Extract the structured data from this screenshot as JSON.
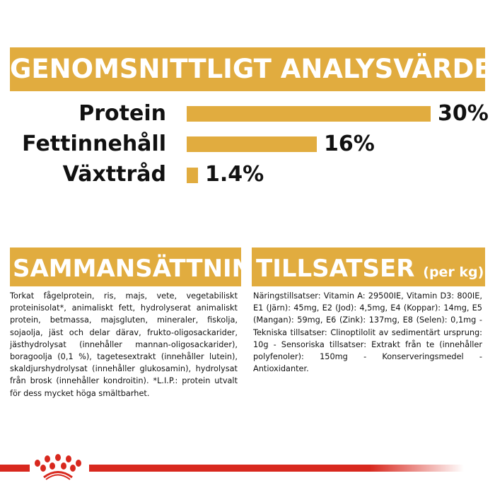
{
  "analysis": {
    "title": "GENOMSNITTLIGT ANALYSVÄRDE",
    "items": [
      {
        "label": "Protein",
        "value": "30%",
        "fraction": 1.0
      },
      {
        "label": "Fettinnehåll",
        "value": "16%",
        "fraction": 0.533
      },
      {
        "label": "Växttråd",
        "value": "1.4%",
        "fraction": 0.047
      }
    ]
  },
  "composition": {
    "title": "SAMMANSÄTTNING",
    "text": "Torkat fågelprotein, ris, majs, vete, vegetabiliskt proteinisolat*, animaliskt fett, hydrolyserat animaliskt protein, betmassa, majsgluten, mineraler, fiskolja, sojaolja, jäst och delar därav, frukto-oligosackarider, jästhydrolysat (innehåller mannan-oligosackarider), boragoolja (0,1 %), tagetesextrakt (innehåller lutein), skaldjurshydrolysat (innehåller glukosamin), hydrolysat från brosk (innehåller kondroitin). *L.I.P.: protein utvalt för dess mycket höga smältbarhet."
  },
  "additives": {
    "title": "TILLSATSER",
    "unit": "(per kg)",
    "text": "Näringstillsatser: Vitamin A: 29500IE, Vitamin D3: 800IE, E1 (Järn): 45mg, E2 (Jod): 4,5mg, E4 (Koppar): 14mg, E5 (Mangan): 59mg, E6 (Zink): 137mg, E8 (Selen): 0,1mg - Tekniska tillsatser: Clinoptilolit av sedimentärt ursprung: 10g - Sensoriska tillsatser: Extrakt från te (innehåller polyfenoler): 150mg - Konserveringsmedel - Antioxidanter."
  },
  "colors": {
    "accent": "#E1AC3F",
    "brand_red": "#D8281E"
  },
  "logo": {
    "icon": "royal-canin-crown-icon"
  }
}
